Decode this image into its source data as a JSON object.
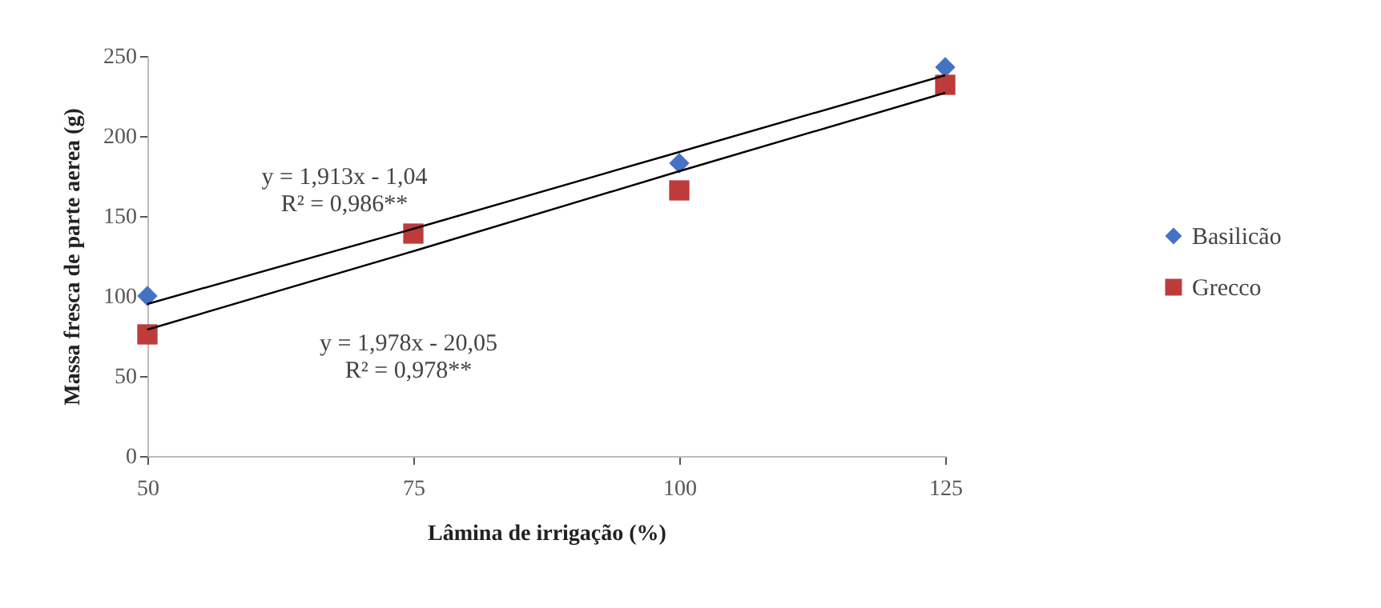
{
  "chart_data": {
    "type": "scatter",
    "xlabel": "Lâmina de irrigação (%)",
    "ylabel": "Massa fresca de parte aerea (g)",
    "x": [
      50,
      75,
      100,
      125
    ],
    "xlim": [
      50,
      125
    ],
    "xticks": [
      50,
      75,
      100,
      125
    ],
    "ylim": [
      0,
      250
    ],
    "yticks": [
      0,
      50,
      100,
      150,
      200,
      250
    ],
    "grid": false,
    "legend": "right",
    "series": [
      {
        "name": "Basilicão",
        "color": "#4472c4",
        "marker": "diamond",
        "values": [
          100,
          null,
          183,
          243
        ]
      },
      {
        "name": "Grecco",
        "color": "#be3b3b",
        "marker": "square",
        "values": [
          76,
          139,
          166,
          232
        ]
      },
      {
        "type": "line",
        "color": "#000000",
        "values": [
          95,
          142,
          190,
          238
        ]
      },
      {
        "type": "line",
        "color": "#000000",
        "values": [
          79,
          128,
          178,
          227
        ]
      }
    ],
    "annotations": [
      "y = 1,913x - 1,04\nR² = 0,986**",
      "y = 1,978x - 20,05\nR² = 0,978**"
    ]
  }
}
